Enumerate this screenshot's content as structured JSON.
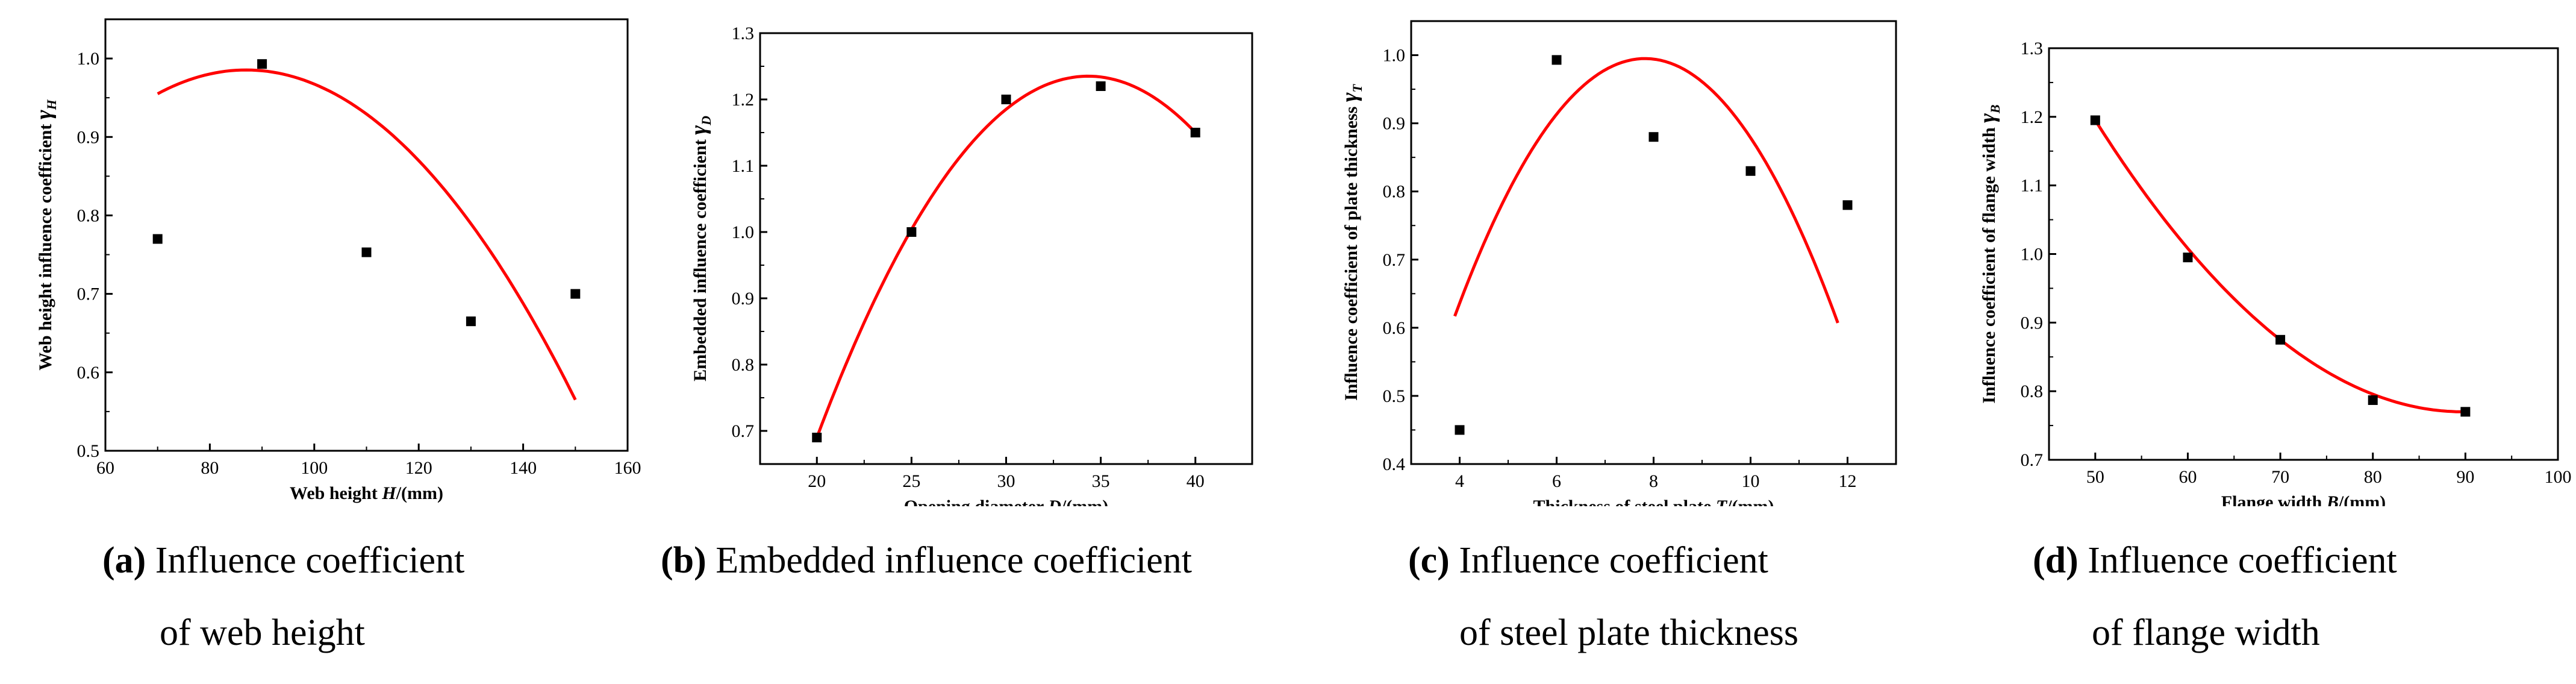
{
  "chart_data": [
    {
      "type": "scatter",
      "id": "a",
      "xlabel": "Web height H/(mm)",
      "ylabel": "Web height influence coefficient γ_H",
      "xlim": [
        60,
        160
      ],
      "ylim": [
        0.5,
        1.05
      ],
      "xticks": [
        60,
        80,
        100,
        120,
        140,
        160
      ],
      "yticks": [
        0.5,
        0.6,
        0.7,
        0.8,
        0.9,
        1.0
      ],
      "ytick_labels": [
        "0.5",
        "0.6",
        "0.7",
        "0.8",
        "0.9",
        "1.0"
      ],
      "points": {
        "x": [
          70,
          90,
          110,
          130,
          150
        ],
        "y": [
          0.77,
          0.993,
          0.753,
          0.665,
          0.7
        ]
      },
      "fit": {
        "x": [
          70,
          85,
          150
        ],
        "y": [
          0.955,
          0.985,
          0.565
        ],
        "color": "#ff0000"
      },
      "caption": {
        "tag": "(a)",
        "line1": "Influence coefficient",
        "line2": "of web height"
      }
    },
    {
      "type": "scatter",
      "id": "b",
      "xlabel": "Opening diameter D/(mm)",
      "ylabel": "Embedded influence coefficient γ_D",
      "xlim": [
        17,
        43
      ],
      "ylim": [
        0.65,
        1.3
      ],
      "xticks": [
        20,
        25,
        30,
        35,
        40
      ],
      "yticks": [
        0.7,
        0.8,
        0.9,
        1.0,
        1.1,
        1.2,
        1.3
      ],
      "ytick_labels": [
        "0.7",
        "0.8",
        "0.9",
        "1.0",
        "1.1",
        "1.2",
        "1.3"
      ],
      "points": {
        "x": [
          20,
          25,
          30,
          35,
          40
        ],
        "y": [
          0.69,
          1.0,
          1.2,
          1.22,
          1.15
        ]
      },
      "fit": {
        "x": [
          20,
          34.5,
          40
        ],
        "y": [
          0.69,
          1.235,
          1.15
        ],
        "color": "#ff0000"
      },
      "caption": {
        "tag": "(b)",
        "line1": "Embedded influence coefficient",
        "line2": ""
      }
    },
    {
      "type": "scatter",
      "id": "c",
      "xlabel": "Thickness of steel plate T/(mm)",
      "ylabel": "Influence coefficient of plate thickness γ_T",
      "xlim": [
        3,
        13
      ],
      "ylim": [
        0.4,
        1.05
      ],
      "xticks": [
        4,
        6,
        8,
        10,
        12
      ],
      "yticks": [
        0.4,
        0.5,
        0.6,
        0.7,
        0.8,
        0.9,
        1.0
      ],
      "ytick_labels": [
        "0.4",
        "0.5",
        "0.6",
        "0.7",
        "0.8",
        "0.9",
        "1.0"
      ],
      "points": {
        "x": [
          4,
          6,
          8,
          10,
          12
        ],
        "y": [
          0.45,
          0.993,
          0.88,
          0.83,
          0.78
        ]
      },
      "fit": {
        "x": [
          3.9,
          7.8,
          11.8
        ],
        "y": [
          0.617,
          0.995,
          0.607
        ],
        "color": "#ff0000"
      },
      "caption": {
        "tag": "(c)",
        "line1": "Influence coefficient",
        "line2": "of steel plate thickness"
      }
    },
    {
      "type": "scatter",
      "id": "d",
      "xlabel": "Flange width B/(mm)",
      "ylabel": "Influence coefficient of flange width γ_B",
      "xlim": [
        45,
        100
      ],
      "ylim": [
        0.7,
        1.3
      ],
      "xticks": [
        50,
        60,
        70,
        80,
        90,
        100
      ],
      "yticks": [
        0.7,
        0.8,
        0.9,
        1.0,
        1.1,
        1.2,
        1.3
      ],
      "ytick_labels": [
        "0.7",
        "0.8",
        "0.9",
        "1.0",
        "1.1",
        "1.2",
        "1.3"
      ],
      "points": {
        "x": [
          50,
          60,
          70,
          80,
          90
        ],
        "y": [
          1.195,
          0.995,
          0.875,
          0.787,
          0.77
        ]
      },
      "fit": {
        "x": [
          50,
          70,
          90
        ],
        "y": [
          1.195,
          0.875,
          0.77
        ],
        "color": "#ff0000"
      },
      "caption": {
        "tag": "(d)",
        "line1": "Influence coefficient",
        "line2": "of flange width"
      }
    }
  ]
}
